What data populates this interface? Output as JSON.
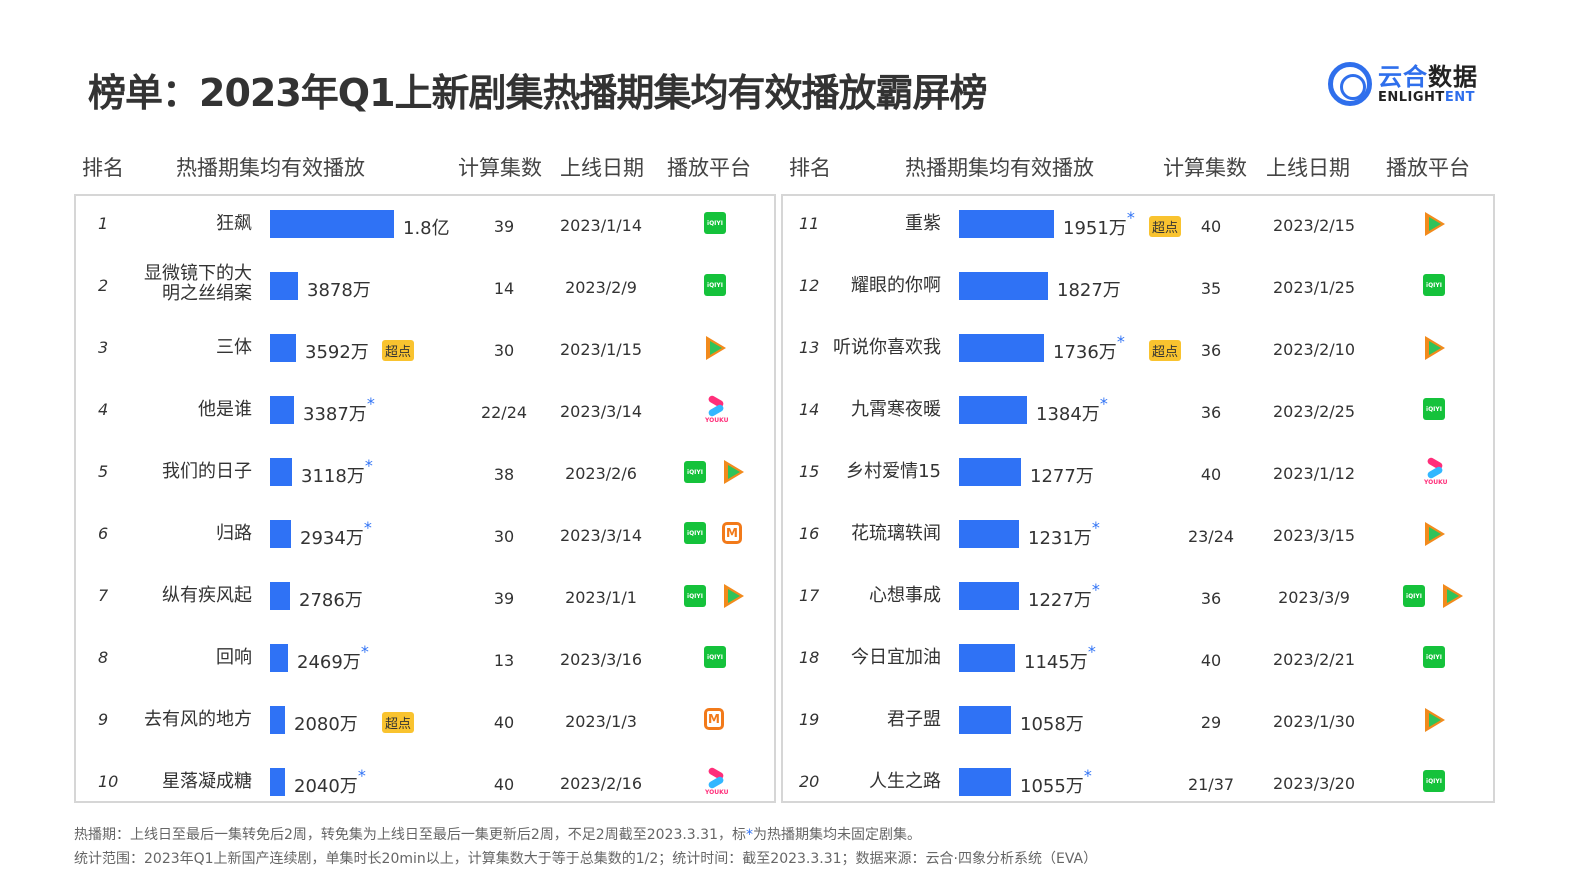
{
  "title": "榜单：2023年Q1上新剧集热播期集均有效播放霸屏榜",
  "logo": {
    "cn_part1": "云合",
    "cn_part2": "数据",
    "en_part1": "ENLIGHT",
    "en_part2": "ENT"
  },
  "headers": {
    "rank": "排名",
    "views": "热播期集均有效播放",
    "episodes": "计算集数",
    "date": "上线日期",
    "platform": "播放平台"
  },
  "badge_label": "超点",
  "icons": {
    "iqiyi": "iQIYI",
    "youku": "YOUKU",
    "mango": "M"
  },
  "rows_left": [
    {
      "rank": "1",
      "name": "狂飙",
      "value": "1.8亿",
      "star": "",
      "badge": "",
      "episodes": "39",
      "date": "2023/1/14",
      "platforms": [
        "iqiyi"
      ],
      "bar": 124
    },
    {
      "rank": "2",
      "name": "显微镜下的大明之丝绢案",
      "value": "3878万",
      "star": "",
      "badge": "",
      "episodes": "14",
      "date": "2023/2/9",
      "platforms": [
        "iqiyi"
      ],
      "bar": 28
    },
    {
      "rank": "3",
      "name": "三体",
      "value": "3592万",
      "star": "",
      "badge": "超点",
      "episodes": "30",
      "date": "2023/1/15",
      "platforms": [
        "tencent"
      ],
      "bar": 26
    },
    {
      "rank": "4",
      "name": "他是谁",
      "value": "3387万",
      "star": "*",
      "badge": "",
      "episodes": "22/24",
      "date": "2023/3/14",
      "platforms": [
        "youku"
      ],
      "bar": 24
    },
    {
      "rank": "5",
      "name": "我们的日子",
      "value": "3118万",
      "star": "*",
      "badge": "",
      "episodes": "38",
      "date": "2023/2/6",
      "platforms": [
        "iqiyi",
        "tencent"
      ],
      "bar": 22
    },
    {
      "rank": "6",
      "name": "归路",
      "value": "2934万",
      "star": "*",
      "badge": "",
      "episodes": "30",
      "date": "2023/3/14",
      "platforms": [
        "iqiyi",
        "mango"
      ],
      "bar": 21
    },
    {
      "rank": "7",
      "name": "纵有疾风起",
      "value": "2786万",
      "star": "",
      "badge": "",
      "episodes": "39",
      "date": "2023/1/1",
      "platforms": [
        "iqiyi",
        "tencent"
      ],
      "bar": 20
    },
    {
      "rank": "8",
      "name": "回响",
      "value": "2469万",
      "star": "*",
      "badge": "",
      "episodes": "13",
      "date": "2023/3/16",
      "platforms": [
        "iqiyi"
      ],
      "bar": 18
    },
    {
      "rank": "9",
      "name": "去有风的地方",
      "value": "2080万",
      "star": "",
      "badge": "超点",
      "episodes": "40",
      "date": "2023/1/3",
      "platforms": [
        "mango"
      ],
      "bar": 15
    },
    {
      "rank": "10",
      "name": "星落凝成糖",
      "value": "2040万",
      "star": "*",
      "badge": "",
      "episodes": "40",
      "date": "2023/2/16",
      "platforms": [
        "youku"
      ],
      "bar": 15
    }
  ],
  "rows_right": [
    {
      "rank": "11",
      "name": "重紫",
      "value": "1951万",
      "star": "*",
      "badge": "超点",
      "episodes": "40",
      "date": "2023/2/15",
      "platforms": [
        "tencent"
      ],
      "bar": 95
    },
    {
      "rank": "12",
      "name": "耀眼的你啊",
      "value": "1827万",
      "star": "",
      "badge": "",
      "episodes": "35",
      "date": "2023/1/25",
      "platforms": [
        "iqiyi"
      ],
      "bar": 89
    },
    {
      "rank": "13",
      "name": "听说你喜欢我",
      "value": "1736万",
      "star": "*",
      "badge": "超点",
      "episodes": "36",
      "date": "2023/2/10",
      "platforms": [
        "tencent"
      ],
      "bar": 85
    },
    {
      "rank": "14",
      "name": "九霄寒夜暖",
      "value": "1384万",
      "star": "*",
      "badge": "",
      "episodes": "36",
      "date": "2023/2/25",
      "platforms": [
        "iqiyi"
      ],
      "bar": 68
    },
    {
      "rank": "15",
      "name": "乡村爱情15",
      "value": "1277万",
      "star": "",
      "badge": "",
      "episodes": "40",
      "date": "2023/1/12",
      "platforms": [
        "youku"
      ],
      "bar": 62
    },
    {
      "rank": "16",
      "name": "花琉璃轶闻",
      "value": "1231万",
      "star": "*",
      "badge": "",
      "episodes": "23/24",
      "date": "2023/3/15",
      "platforms": [
        "tencent"
      ],
      "bar": 60
    },
    {
      "rank": "17",
      "name": "心想事成",
      "value": "1227万",
      "star": "*",
      "badge": "",
      "episodes": "36",
      "date": "2023/3/9",
      "platforms": [
        "iqiyi",
        "tencent"
      ],
      "bar": 60
    },
    {
      "rank": "18",
      "name": "今日宜加油",
      "value": "1145万",
      "star": "*",
      "badge": "",
      "episodes": "40",
      "date": "2023/2/21",
      "platforms": [
        "iqiyi"
      ],
      "bar": 56
    },
    {
      "rank": "19",
      "name": "君子盟",
      "value": "1058万",
      "star": "",
      "badge": "",
      "episodes": "29",
      "date": "2023/1/30",
      "platforms": [
        "tencent"
      ],
      "bar": 52
    },
    {
      "rank": "20",
      "name": "人生之路",
      "value": "1055万",
      "star": "*",
      "badge": "",
      "episodes": "21/37",
      "date": "2023/3/20",
      "platforms": [
        "iqiyi"
      ],
      "bar": 52
    }
  ],
  "footer": {
    "line1_a": "热播期：上线日至最后一集转免后2周，转免集为上线日至最后一集更新后2周，不足2周截至2023.3.31，标",
    "line1_star": "*",
    "line1_b": "为热播期集均未固定剧集。",
    "line2": "统计范围：2023年Q1上新国产连续剧，单集时长20min以上，计算集数大于等于总集数的1/2；统计时间：截至2023.3.31；数据来源：云合·四象分析系统（EVA）"
  },
  "colors": {
    "bar": "#2f72f5",
    "badge": "#f9c32f",
    "iqiyi": "#15c23b",
    "star": "#2f72f5",
    "title": "#333333",
    "brand_blue": "#2f6fec"
  },
  "chart_data": {
    "type": "bar",
    "title": "榜单：2023年Q1上新剧集热播期集均有效播放霸屏榜",
    "xlabel": "",
    "ylabel": "热播期集均有效播放",
    "categories": [
      "狂飙",
      "显微镜下的大明之丝绢案",
      "三体",
      "他是谁",
      "我们的日子",
      "归路",
      "纵有疾风起",
      "回响",
      "去有风的地方",
      "星落凝成糖",
      "重紫",
      "耀眼的你啊",
      "听说你喜欢我",
      "九霄寒夜暖",
      "乡村爱情15",
      "花琉璃轶闻",
      "心想事成",
      "今日宜加油",
      "君子盟",
      "人生之路"
    ],
    "values_wan": [
      18000,
      3878,
      3592,
      3387,
      3118,
      2934,
      2786,
      2469,
      2080,
      2040,
      1951,
      1827,
      1736,
      1384,
      1277,
      1231,
      1227,
      1145,
      1058,
      1055
    ],
    "episodes": [
      "39",
      "14",
      "30",
      "22/24",
      "38",
      "30",
      "39",
      "13",
      "40",
      "40",
      "40",
      "35",
      "36",
      "36",
      "40",
      "23/24",
      "36",
      "40",
      "29",
      "21/37"
    ],
    "release_dates": [
      "2023/1/14",
      "2023/2/9",
      "2023/1/15",
      "2023/3/14",
      "2023/2/6",
      "2023/3/14",
      "2023/1/1",
      "2023/3/16",
      "2023/1/3",
      "2023/2/16",
      "2023/2/15",
      "2023/1/25",
      "2023/2/10",
      "2023/2/25",
      "2023/1/12",
      "2023/3/15",
      "2023/3/9",
      "2023/2/21",
      "2023/1/30",
      "2023/3/20"
    ],
    "orientation": "horizontal",
    "unit": "万"
  }
}
